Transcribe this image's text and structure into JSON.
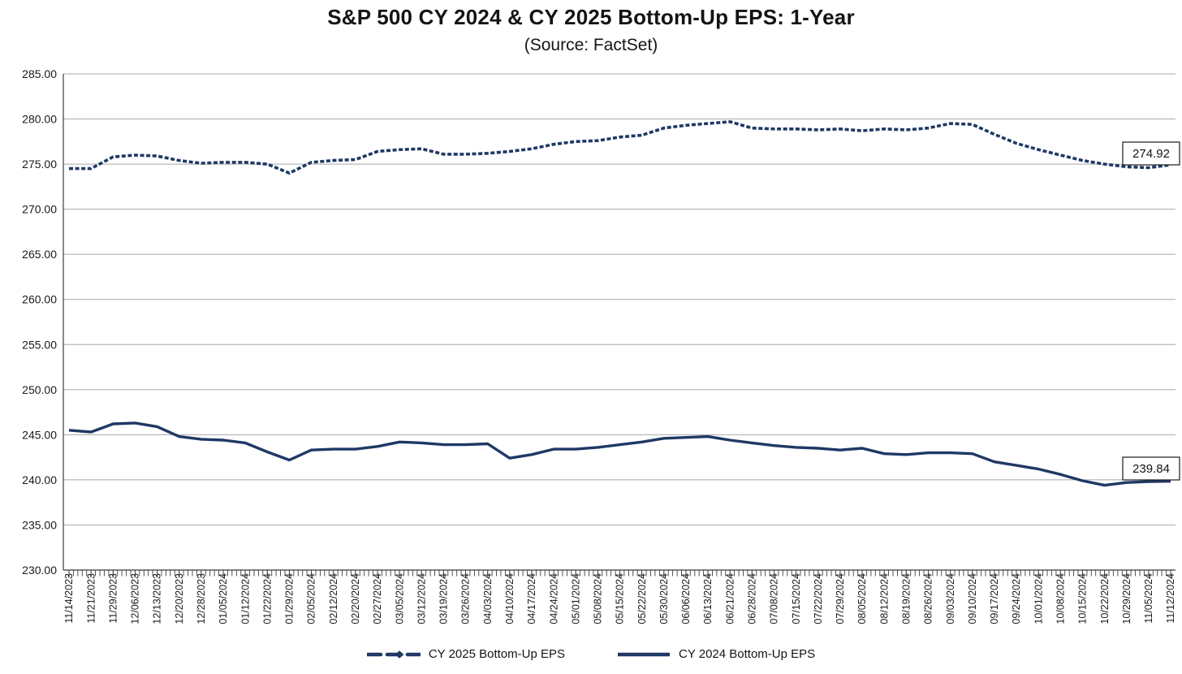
{
  "chart_data": {
    "type": "line",
    "title": "S&P 500 CY 2024 & CY 2025 Bottom-Up EPS: 1-Year",
    "subtitle": "(Source: FactSet)",
    "xlabel": "",
    "ylabel": "",
    "ylim": [
      230,
      285
    ],
    "ytick_step": 5,
    "ytick_labels": [
      "285.00",
      "280.00",
      "275.00",
      "270.00",
      "265.00",
      "260.00",
      "255.00",
      "250.00",
      "245.00",
      "240.00",
      "235.00",
      "230.00"
    ],
    "grid": true,
    "legend_position": "bottom",
    "axis_color": "#595959",
    "gridline_color": "#a8a8a8",
    "tick_color": "#404040",
    "label_color": "#1a1a1a",
    "categories": [
      "11/14/2023",
      "11/21/2023",
      "11/29/2023",
      "12/06/2023",
      "12/13/2023",
      "12/20/2023",
      "12/28/2023",
      "01/05/2024",
      "01/12/2024",
      "01/22/2024",
      "01/29/2024",
      "02/05/2024",
      "02/12/2024",
      "02/20/2024",
      "02/27/2024",
      "03/05/2024",
      "03/12/2024",
      "03/19/2024",
      "03/26/2024",
      "04/03/2024",
      "04/10/2024",
      "04/17/2024",
      "04/24/2024",
      "05/01/2024",
      "05/08/2024",
      "05/15/2024",
      "05/22/2024",
      "05/30/2024",
      "06/06/2024",
      "06/13/2024",
      "06/21/2024",
      "06/28/2024",
      "07/08/2024",
      "07/15/2024",
      "07/22/2024",
      "07/29/2024",
      "08/05/2024",
      "08/12/2024",
      "08/19/2024",
      "08/26/2024",
      "09/03/2024",
      "09/10/2024",
      "09/17/2024",
      "09/24/2024",
      "10/01/2024",
      "10/08/2024",
      "10/15/2024",
      "10/22/2024",
      "10/29/2024",
      "11/05/2024",
      "11/12/2024"
    ],
    "series": [
      {
        "name": "CY 2025 Bottom-Up EPS",
        "style": "dashed",
        "color": "#1f3864",
        "end_label": "274.92",
        "values": [
          274.5,
          274.5,
          275.8,
          276.0,
          275.9,
          275.4,
          275.1,
          275.2,
          275.2,
          275.0,
          274.0,
          275.2,
          275.4,
          275.5,
          276.4,
          276.6,
          276.7,
          276.1,
          276.1,
          276.2,
          276.4,
          276.7,
          277.2,
          277.5,
          277.6,
          278.0,
          278.2,
          279.0,
          279.3,
          279.5,
          279.7,
          279.0,
          278.9,
          278.9,
          278.8,
          278.9,
          278.7,
          278.9,
          278.8,
          279.0,
          279.5,
          279.4,
          278.3,
          277.3,
          276.6,
          276.0,
          275.4,
          275.0,
          274.7,
          274.6,
          274.92
        ]
      },
      {
        "name": "CY 2024 Bottom-Up EPS",
        "style": "solid",
        "color": "#1f3864",
        "end_label": "239.84",
        "values": [
          245.5,
          245.3,
          246.2,
          246.3,
          245.9,
          244.8,
          244.5,
          244.4,
          244.1,
          243.1,
          242.2,
          243.3,
          243.4,
          243.4,
          243.7,
          244.2,
          244.1,
          243.9,
          243.9,
          244.0,
          242.4,
          242.8,
          243.4,
          243.4,
          243.6,
          243.9,
          244.2,
          244.6,
          244.7,
          244.8,
          244.4,
          244.1,
          243.8,
          243.6,
          243.5,
          243.3,
          243.5,
          242.9,
          242.8,
          243.0,
          243.0,
          242.9,
          242.0,
          241.6,
          241.2,
          240.6,
          239.9,
          239.4,
          239.7,
          239.8,
          239.84
        ]
      }
    ]
  }
}
